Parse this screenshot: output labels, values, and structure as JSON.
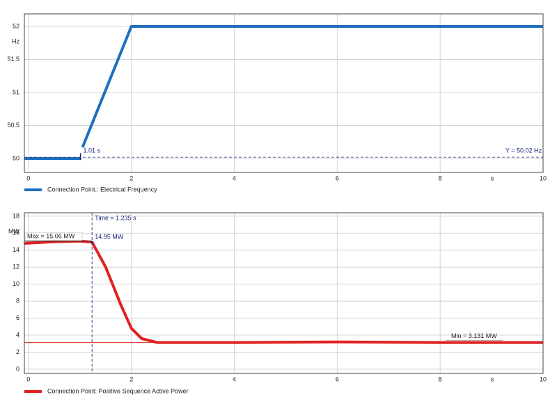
{
  "chart_data": [
    {
      "type": "line",
      "y_unit": "Hz",
      "x_unit": "s",
      "xlim": [
        -0.08,
        10
      ],
      "xticks": [
        0,
        2,
        4,
        6,
        8,
        10
      ],
      "ylim": [
        49.79,
        52.19
      ],
      "yticks": [
        50,
        50.5,
        51,
        51.5,
        52
      ],
      "grid": true,
      "series": [
        {
          "name": "Connection Point.: Electrical Frequency",
          "color": "#1f6fbf",
          "x": [
            -0.08,
            1.01,
            1.03,
            1.05,
            2.0,
            10
          ],
          "values": [
            50,
            50,
            null,
            50.17,
            52,
            52
          ]
        }
      ],
      "cursor": {
        "x": 1.01,
        "y": 50.02,
        "x_label": "1.01 s",
        "y_label": "Y = 50.02 Hz"
      }
    },
    {
      "type": "line",
      "y_unit": "MW",
      "x_unit": "s",
      "xlim": [
        -0.08,
        10
      ],
      "xticks": [
        0,
        2,
        4,
        6,
        8,
        10
      ],
      "ylim": [
        -0.5,
        18.4
      ],
      "yticks": [
        0,
        2,
        4,
        6,
        8,
        10,
        12,
        14,
        16,
        18
      ],
      "grid": true,
      "series": [
        {
          "name": "Connection Point: Positive Sequence Active Power",
          "color": "#e02020",
          "x": [
            -0.08,
            0.5,
            1.0,
            1.235,
            1.5,
            1.8,
            2.0,
            2.2,
            2.5,
            4,
            6,
            8,
            10
          ],
          "values": [
            14.8,
            15.0,
            15.06,
            14.95,
            12,
            7.5,
            4.8,
            3.6,
            3.13,
            3.13,
            3.2,
            3.13,
            3.131
          ]
        }
      ],
      "cursor": {
        "x": 1.235,
        "x_label": "Time = 1.235 s",
        "y": 14.95,
        "y_label": "14.95 MW"
      },
      "max": {
        "value": 15.06,
        "label": "Max = 15.06 MW"
      },
      "min": {
        "value": 3.131,
        "label": "Min = 3.131 MW"
      }
    }
  ]
}
